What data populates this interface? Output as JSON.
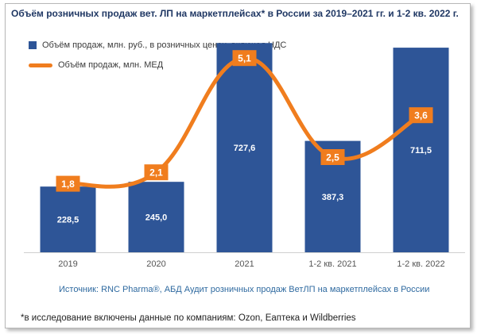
{
  "colors": {
    "bar": "#2e5597",
    "line": "#f07d1e",
    "bar_label": "#ffffff",
    "line_label_text": "#ffffff",
    "axis_text": "#555555",
    "title": "#203864",
    "source": "#2f6aa0"
  },
  "chart_data": {
    "type": "bar",
    "title": "Объём розничных продаж вет. ЛП на маркетплейсах* в России за 2019–2021 гг. и 1-2 кв. 2022 г.",
    "categories": [
      "2019",
      "2020",
      "2021",
      "1-2 кв. 2021",
      "1-2 кв. 2022"
    ],
    "series": [
      {
        "name": "Объём продаж, млн. руб., в розничных ценах, включая НДС",
        "type": "bar",
        "values": [
          228.5,
          245.0,
          727.6,
          387.3,
          711.5
        ],
        "labels": [
          "228,5",
          "245,0",
          "727,6",
          "387,3",
          "711,5"
        ]
      },
      {
        "name": "Объём продаж, млн. МЕД",
        "type": "line",
        "smooth": true,
        "values": [
          1.8,
          2.1,
          5.1,
          2.5,
          3.6
        ],
        "labels": [
          "1,8",
          "2,1",
          "5,1",
          "2,5",
          "3,6"
        ]
      }
    ],
    "bar_axis_range": [
      0,
      800
    ],
    "line_axis_range": [
      0,
      6
    ],
    "grid": false,
    "legend_position": "top-left"
  },
  "source": "Источник: RNC Pharma®, АБД Аудит розничных продаж ВетЛП на маркетплейсах в России",
  "footnote": "*в исследование включены данные по компаниям: Ozon, Еаптека и Wildberries"
}
